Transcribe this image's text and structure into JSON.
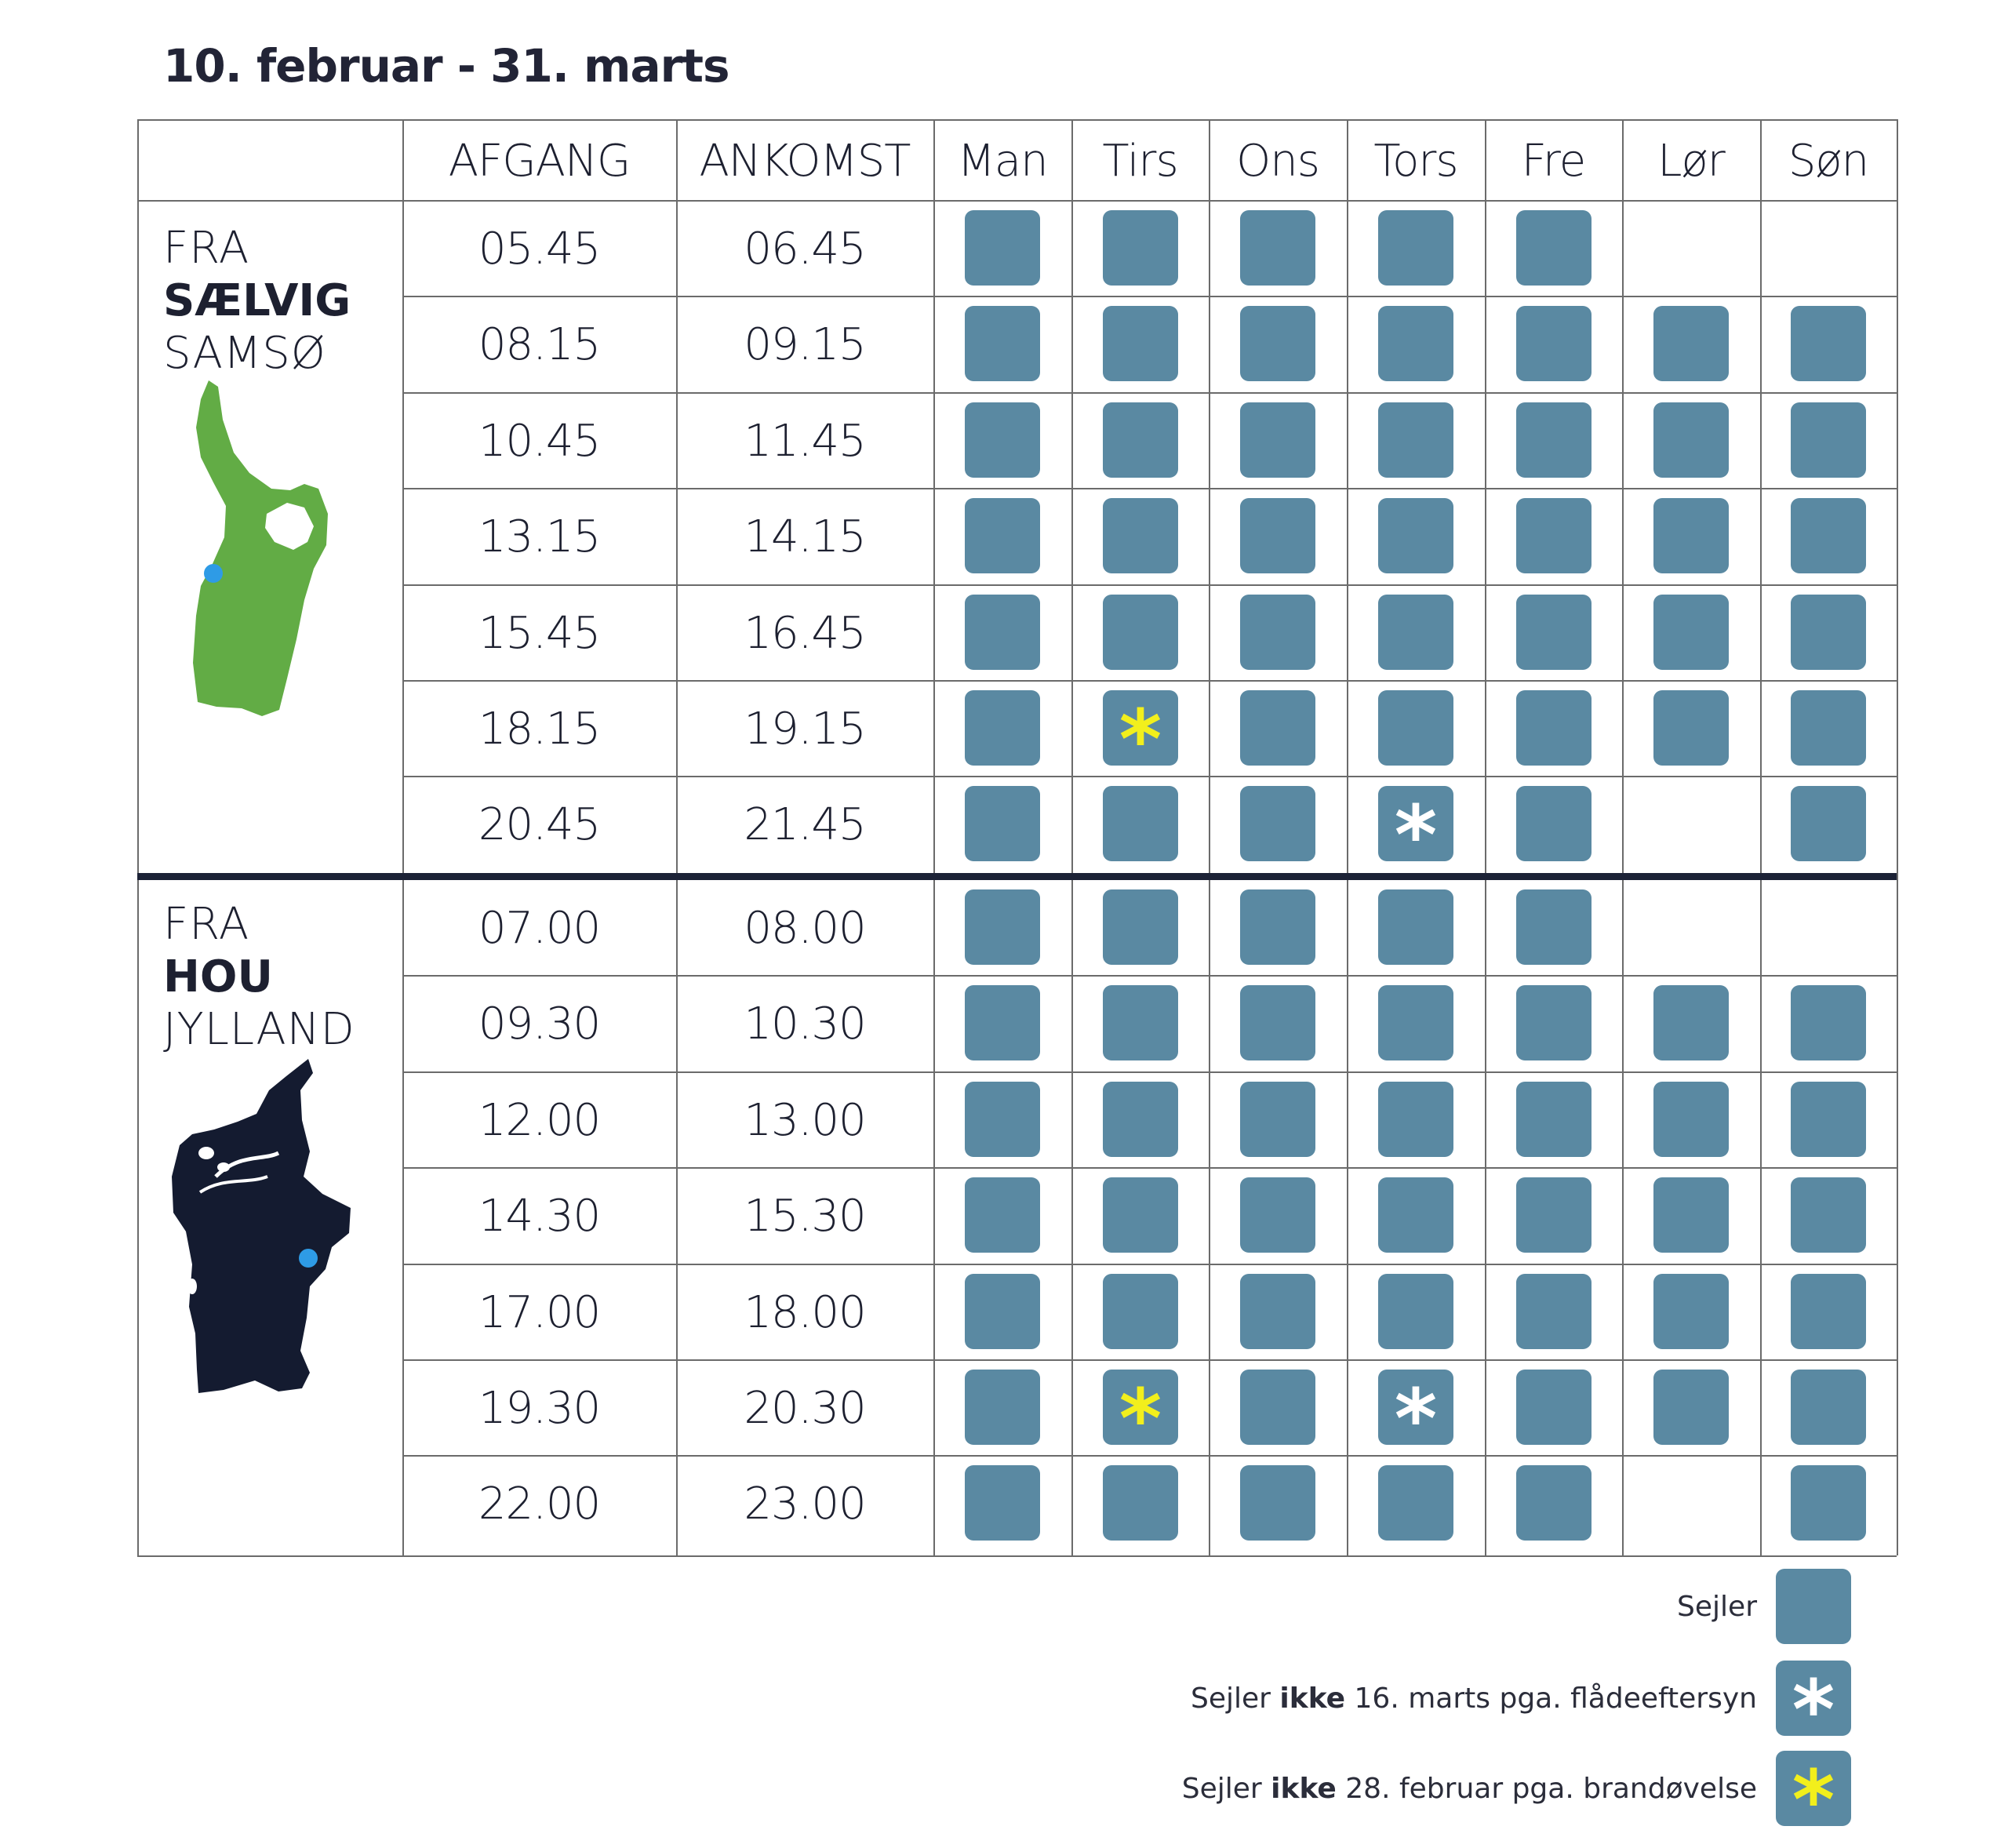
{
  "title": "10. februar - 31. marts",
  "headers": {
    "afgang": "AFGANG",
    "ankomst": "ANKOMST",
    "days": [
      "Man",
      "Tirs",
      "Ons",
      "Tors",
      "Fre",
      "Lør",
      "Søn"
    ]
  },
  "sections": [
    {
      "from": "FRA",
      "port": "SÆLVIG",
      "region": "SAMSØ",
      "map_icon": "samso-map-icon",
      "map_color": "#62ac45",
      "rows": [
        {
          "afgang": "05.45",
          "ankomst": "06.45",
          "days": [
            "s",
            "s",
            "s",
            "s",
            "s",
            "",
            ""
          ]
        },
        {
          "afgang": "08.15",
          "ankomst": "09.15",
          "days": [
            "s",
            "s",
            "s",
            "s",
            "s",
            "s",
            "s"
          ]
        },
        {
          "afgang": "10.45",
          "ankomst": "11.45",
          "days": [
            "s",
            "s",
            "s",
            "s",
            "s",
            "s",
            "s"
          ]
        },
        {
          "afgang": "13.15",
          "ankomst": "14.15",
          "days": [
            "s",
            "s",
            "s",
            "s",
            "s",
            "s",
            "s"
          ]
        },
        {
          "afgang": "15.45",
          "ankomst": "16.45",
          "days": [
            "s",
            "s",
            "s",
            "s",
            "s",
            "s",
            "s"
          ]
        },
        {
          "afgang": "18.15",
          "ankomst": "19.15",
          "days": [
            "s",
            "y",
            "s",
            "s",
            "s",
            "s",
            "s"
          ]
        },
        {
          "afgang": "20.45",
          "ankomst": "21.45",
          "days": [
            "s",
            "s",
            "s",
            "w",
            "s",
            "",
            "s"
          ]
        }
      ]
    },
    {
      "from": "FRA",
      "port": "HOU",
      "region": "JYLLAND",
      "map_icon": "jylland-map-icon",
      "map_color": "#141b30",
      "rows": [
        {
          "afgang": "07.00",
          "ankomst": "08.00",
          "days": [
            "s",
            "s",
            "s",
            "s",
            "s",
            "",
            ""
          ]
        },
        {
          "afgang": "09.30",
          "ankomst": "10.30",
          "days": [
            "s",
            "s",
            "s",
            "s",
            "s",
            "s",
            "s"
          ]
        },
        {
          "afgang": "12.00",
          "ankomst": "13.00",
          "days": [
            "s",
            "s",
            "s",
            "s",
            "s",
            "s",
            "s"
          ]
        },
        {
          "afgang": "14.30",
          "ankomst": "15.30",
          "days": [
            "s",
            "s",
            "s",
            "s",
            "s",
            "s",
            "s"
          ]
        },
        {
          "afgang": "17.00",
          "ankomst": "18.00",
          "days": [
            "s",
            "s",
            "s",
            "s",
            "s",
            "s",
            "s"
          ]
        },
        {
          "afgang": "19.30",
          "ankomst": "20.30",
          "days": [
            "s",
            "y",
            "s",
            "w",
            "s",
            "s",
            "s"
          ]
        },
        {
          "afgang": "22.00",
          "ankomst": "23.00",
          "days": [
            "s",
            "s",
            "s",
            "s",
            "s",
            "",
            "s"
          ]
        }
      ]
    }
  ],
  "legend": {
    "sejler": "Sejler",
    "white_pre": "Sejler",
    "white_bold": "ikke",
    "white_post": "16. marts pga. flådeeftersyn",
    "yellow_pre": "Sejler",
    "yellow_bold": "ikke",
    "yellow_post": "28. februar pga. brandøvelse"
  },
  "colors": {
    "cell": "#5a89a2",
    "asterisk_white": "#ffffff",
    "asterisk_yellow": "#f2ef1c",
    "location_dot": "#2e9be6"
  },
  "symbols": {
    "asterisk": "*"
  }
}
